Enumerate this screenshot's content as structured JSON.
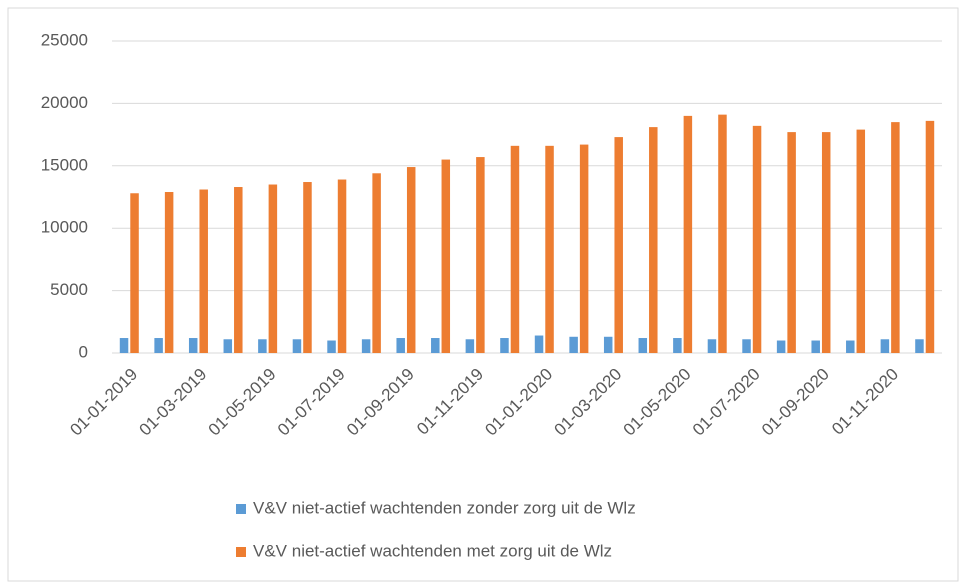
{
  "chart_data": {
    "type": "bar",
    "categories": [
      "01-01-2019",
      null,
      "01-03-2019",
      null,
      "01-05-2019",
      null,
      "01-07-2019",
      null,
      "01-09-2019",
      null,
      "01-11-2019",
      null,
      "01-01-2020",
      null,
      "01-03-2020",
      null,
      "01-05-2020",
      null,
      "01-07-2020",
      null,
      "01-09-2020",
      null,
      "01-11-2020",
      null
    ],
    "series": [
      {
        "name": "V&V niet-actief wachtenden zonder zorg uit de Wlz",
        "color": "#5b9bd5",
        "values": [
          1200,
          1200,
          1200,
          1100,
          1100,
          1100,
          1000,
          1100,
          1200,
          1200,
          1100,
          1200,
          1400,
          1300,
          1300,
          1200,
          1200,
          1100,
          1100,
          1000,
          1000,
          1000,
          1100,
          1100
        ]
      },
      {
        "name": "V&V niet-actief wachtenden met zorg uit de Wlz",
        "color": "#ed7d31",
        "values": [
          12800,
          12900,
          13100,
          13300,
          13500,
          13700,
          13900,
          14400,
          14900,
          15500,
          15700,
          16600,
          16600,
          16700,
          17300,
          18100,
          19000,
          19100,
          18200,
          17700,
          17700,
          17900,
          18500,
          18600
        ]
      }
    ],
    "ylim": [
      0,
      25000
    ],
    "yticks": [
      0,
      5000,
      10000,
      15000,
      20000,
      25000
    ],
    "grid": true,
    "legend": "bottom"
  }
}
